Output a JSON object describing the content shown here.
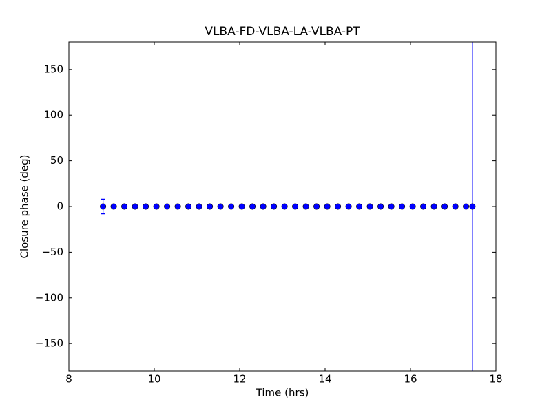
{
  "chart_data": {
    "type": "scatter",
    "title": "VLBA-FD-VLBA-LA-VLBA-PT",
    "xlabel": "Time (hrs)",
    "ylabel": "Closure phase (deg)",
    "x": [
      8.8,
      9.05,
      9.3,
      9.55,
      9.8,
      10.05,
      10.3,
      10.55,
      10.8,
      11.05,
      11.3,
      11.55,
      11.8,
      12.05,
      12.3,
      12.55,
      12.8,
      13.05,
      13.3,
      13.55,
      13.8,
      14.05,
      14.3,
      14.55,
      14.8,
      15.05,
      15.3,
      15.55,
      15.8,
      16.05,
      16.3,
      16.55,
      16.8,
      17.05,
      17.3,
      17.45
    ],
    "values": [
      0,
      0,
      0,
      0,
      0,
      0,
      0,
      0,
      0,
      0,
      0,
      0,
      0,
      0,
      0,
      0,
      0,
      0,
      0,
      0,
      0,
      0,
      0,
      0,
      0,
      0,
      0,
      0,
      0,
      0,
      0,
      0,
      0,
      0,
      0,
      0
    ],
    "errors": [
      8,
      0,
      0,
      0,
      0,
      0,
      0,
      0,
      0,
      0,
      0,
      0,
      0,
      0,
      0,
      0,
      0,
      0,
      0,
      0,
      0,
      0,
      0,
      0,
      0,
      0,
      0,
      0,
      0,
      0,
      0,
      0,
      0,
      0,
      0,
      200
    ],
    "color": "#0000ff",
    "xlim": [
      8,
      18
    ],
    "xticks": [
      8,
      10,
      12,
      14,
      16,
      18
    ],
    "ylim": [
      -180,
      180
    ],
    "yticks": [
      {
        "value": -150,
        "label": "−150"
      },
      {
        "value": -100,
        "label": "−100"
      },
      {
        "value": -50,
        "label": "−50"
      },
      0,
      50,
      100,
      150
    ]
  }
}
